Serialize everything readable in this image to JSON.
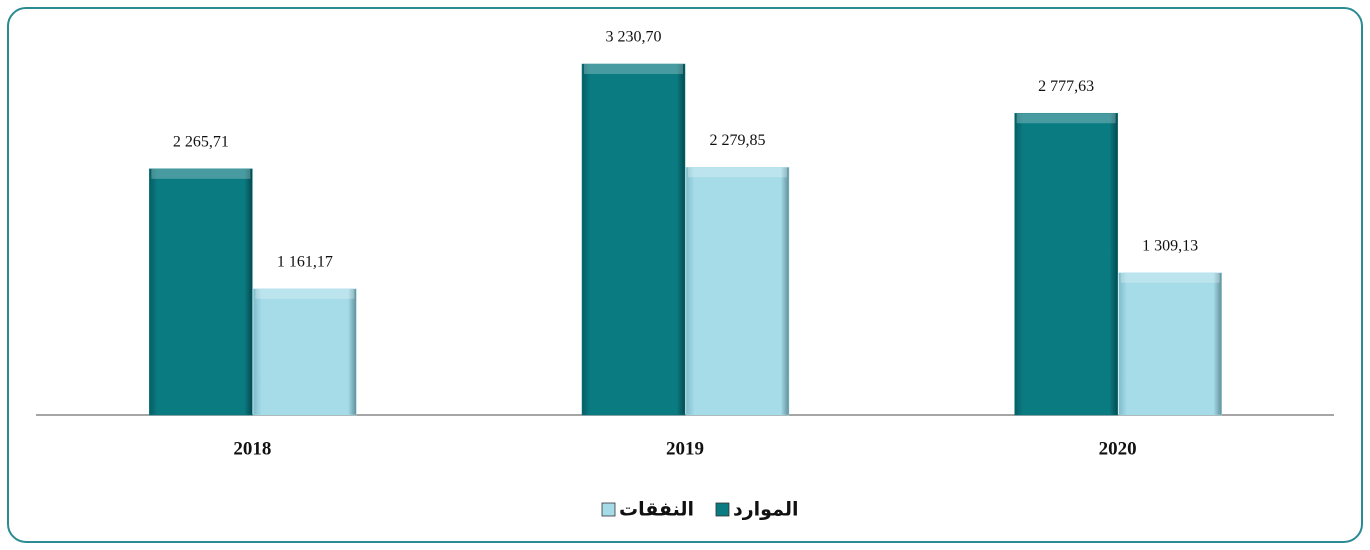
{
  "chart_data": {
    "type": "bar",
    "categories": [
      "2018",
      "2019",
      "2020"
    ],
    "series": [
      {
        "name": "الموارد",
        "color": "#0b7b82",
        "values": [
          2265.71,
          3230.7,
          2777.63
        ],
        "value_labels": [
          "2 265,71",
          "3 230,70",
          "2 777,63"
        ]
      },
      {
        "name": "النفقات",
        "color": "#a6dbe8",
        "values": [
          1161.17,
          2279.85,
          1309.13
        ],
        "value_labels": [
          "1 161,17",
          "2 279,85",
          "1 309,13"
        ]
      }
    ],
    "legend": "bottom"
  }
}
